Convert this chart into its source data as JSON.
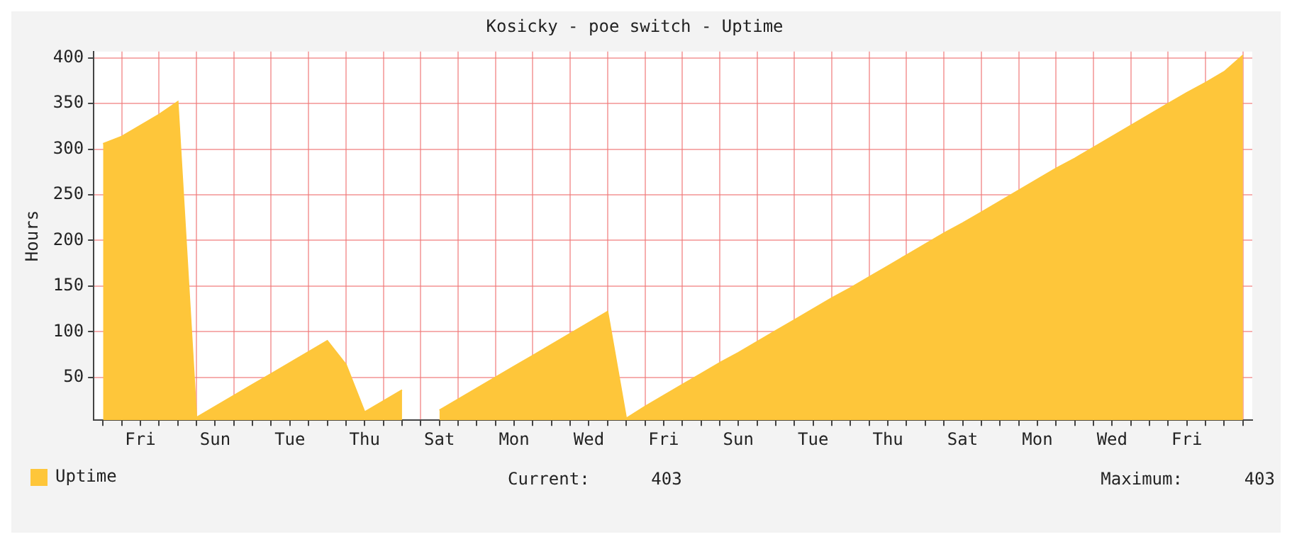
{
  "chart_data": {
    "type": "area",
    "title": "Kosicky - poe switch - Uptime",
    "ylabel": "Hours",
    "categories": [
      null,
      null,
      "Fri",
      null,
      null,
      null,
      "Sun",
      null,
      null,
      null,
      "Tue",
      null,
      null,
      null,
      "Thu",
      null,
      null,
      null,
      "Sat",
      null,
      null,
      null,
      "Mon",
      null,
      null,
      null,
      "Wed",
      null,
      null,
      null,
      "Fri",
      null,
      null,
      null,
      "Sun",
      null,
      null,
      null,
      "Tue",
      null,
      null,
      null,
      "Thu",
      null,
      null,
      null,
      "Sat",
      null,
      null,
      null,
      "Mon",
      null,
      null,
      null,
      "Wed",
      null,
      null,
      null,
      "Fri",
      null,
      null,
      null
    ],
    "series": [
      {
        "name": "Uptime",
        "color": "#fec63a",
        "values": [
          306,
          314,
          326,
          338,
          352,
          6,
          18,
          30,
          42,
          54,
          66,
          78,
          90,
          64,
          12,
          24,
          36,
          null,
          null,
          null,
          null,
          null,
          null,
          null,
          null,
          null,
          null,
          null,
          null,
          null,
          null,
          null,
          null,
          null,
          null,
          null,
          null,
          null,
          null,
          null,
          null,
          null,
          null,
          null,
          null,
          null,
          null,
          null,
          null,
          null,
          null,
          null,
          null,
          null,
          null,
          null,
          null,
          null,
          null,
          null,
          null,
          null
        ]
      },
      {
        "color": "#fec63a",
        "values": [
          null,
          null,
          null,
          null,
          null,
          null,
          null,
          null,
          null,
          null,
          null,
          null,
          null,
          null,
          null,
          null,
          null,
          null,
          14,
          26,
          38,
          50,
          62,
          74,
          86,
          98,
          110,
          122,
          5,
          18,
          30,
          42,
          54,
          66,
          77,
          89,
          101,
          113,
          125,
          137,
          148,
          160,
          172,
          184,
          196,
          208,
          219,
          231,
          243,
          255,
          267,
          279,
          290,
          302,
          314,
          326,
          338,
          350,
          362,
          373,
          385,
          403
        ]
      }
    ],
    "ylim": [
      3,
      407
    ],
    "yticks": [
      50,
      100,
      150,
      200,
      250,
      300,
      350,
      400
    ],
    "grid": true,
    "legend": "bottom left",
    "marker": "none",
    "annotations": [
      "Current:      403",
      "Maximum:      403"
    ]
  }
}
